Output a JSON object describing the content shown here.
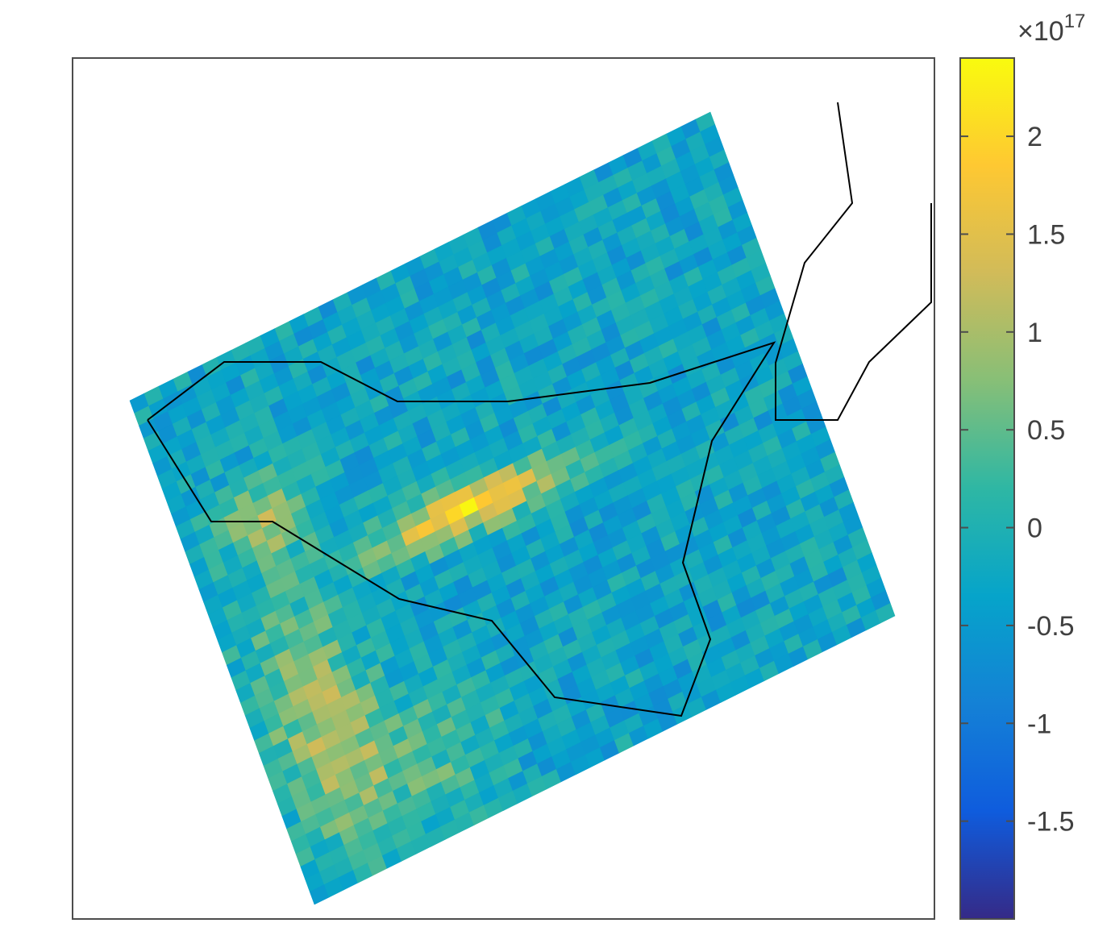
{
  "chart_data": {
    "type": "heatmap",
    "title": "",
    "xlabel": "",
    "ylabel": "",
    "grid": false,
    "colormap": "parula",
    "colormap_stops": [
      "#352a87",
      "#0f5cdd",
      "#1481d6",
      "#06a4ca",
      "#2eb7a4",
      "#87bf77",
      "#d1bb59",
      "#fec832",
      "#f9fb0e"
    ],
    "colorbar": {
      "placement": "right",
      "min": -2.0,
      "max": 2.4,
      "exponent_label": "×10",
      "exponent": "17",
      "ticks": [
        {
          "value": 2,
          "label": "2"
        },
        {
          "value": 1.5,
          "label": "1.5"
        },
        {
          "value": 1,
          "label": "1"
        },
        {
          "value": 0.5,
          "label": "0.5"
        },
        {
          "value": 0,
          "label": "0"
        },
        {
          "value": -0.5,
          "label": "-0.5"
        },
        {
          "value": -1,
          "label": "-1"
        },
        {
          "value": -1.5,
          "label": "-1.5"
        }
      ]
    },
    "grid_size": {
      "rows": 40,
      "cols": 40
    },
    "background_value": -0.3,
    "noise_amplitude": 0.45,
    "features": [
      {
        "name": "central-streak",
        "peak": 2.2
      },
      {
        "name": "southwest-band",
        "peak": 1.3
      },
      {
        "name": "west-patch",
        "peak": 1.2
      },
      {
        "name": "south-patch",
        "peak": 0.9
      }
    ],
    "outlines": [
      {
        "name": "region-outline"
      },
      {
        "name": "coastline-northeast"
      }
    ]
  }
}
